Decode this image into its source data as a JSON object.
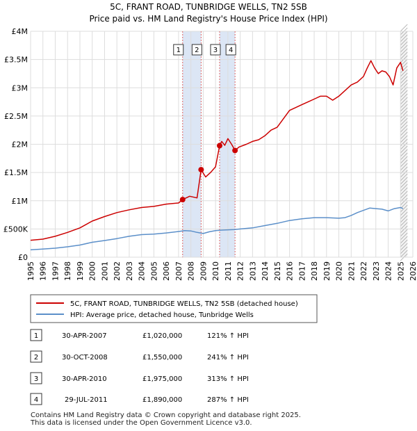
{
  "chart_data": {
    "type": "line",
    "title": "5C, FRANT ROAD, TUNBRIDGE WELLS, TN2 5SB",
    "subtitle": "Price paid vs. HM Land Registry's House Price Index (HPI)",
    "xlim": [
      1995,
      2026
    ],
    "ylim": [
      0,
      4000000
    ],
    "x_ticks": [
      "1995",
      "1996",
      "1997",
      "1998",
      "1999",
      "2000",
      "2001",
      "2002",
      "2003",
      "2004",
      "2005",
      "2006",
      "2007",
      "2008",
      "2009",
      "2010",
      "2011",
      "2012",
      "2013",
      "2014",
      "2015",
      "2016",
      "2017",
      "2018",
      "2019",
      "2020",
      "2021",
      "2022",
      "2023",
      "2024",
      "2025",
      "2026"
    ],
    "y_ticks": [
      {
        "label": "£0",
        "value": 0
      },
      {
        "label": "£500K",
        "value": 500000
      },
      {
        "label": "£1M",
        "value": 1000000
      },
      {
        "label": "£1.5M",
        "value": 1500000
      },
      {
        "label": "£2M",
        "value": 2000000
      },
      {
        "label": "£2.5M",
        "value": 2500000
      },
      {
        "label": "£3M",
        "value": 3000000
      },
      {
        "label": "£3.5M",
        "value": 3500000
      },
      {
        "label": "£4M",
        "value": 4000000
      }
    ],
    "grid": true,
    "shaded_spans": [
      [
        2007.33,
        2008.83
      ],
      [
        2010.33,
        2011.58
      ]
    ],
    "forecast_start": 2025.0,
    "series": [
      {
        "name": "5C, FRANT ROAD, TUNBRIDGE WELLS, TN2 5SB (detached house)",
        "color": "#cc0000",
        "x": [
          1995.0,
          1996.0,
          1997.0,
          1998.0,
          1999.0,
          2000.0,
          2001.0,
          2002.0,
          2003.0,
          2004.0,
          2005.0,
          2006.0,
          2007.0,
          2007.33,
          2007.9,
          2008.5,
          2008.83,
          2009.2,
          2009.6,
          2010.0,
          2010.33,
          2010.5,
          2010.75,
          2011.0,
          2011.3,
          2011.58,
          2011.9,
          2012.5,
          2013.0,
          2013.5,
          2014.0,
          2014.5,
          2015.0,
          2015.5,
          2016.0,
          2016.5,
          2017.0,
          2017.5,
          2018.0,
          2018.5,
          2019.0,
          2019.5,
          2020.0,
          2020.5,
          2021.0,
          2021.5,
          2022.0,
          2022.3,
          2022.6,
          2022.9,
          2023.2,
          2023.5,
          2023.8,
          2024.1,
          2024.4,
          2024.7,
          2025.0,
          2025.2
        ],
        "y": [
          300000,
          320000,
          370000,
          440000,
          520000,
          640000,
          720000,
          790000,
          840000,
          880000,
          900000,
          940000,
          960000,
          1020000,
          1080000,
          1050000,
          1550000,
          1420000,
          1500000,
          1600000,
          1975000,
          2050000,
          1980000,
          2100000,
          2000000,
          1890000,
          1950000,
          2000000,
          2050000,
          2080000,
          2150000,
          2250000,
          2300000,
          2450000,
          2600000,
          2650000,
          2700000,
          2750000,
          2800000,
          2850000,
          2850000,
          2780000,
          2850000,
          2950000,
          3050000,
          3100000,
          3200000,
          3350000,
          3480000,
          3350000,
          3250000,
          3300000,
          3280000,
          3200000,
          3050000,
          3350000,
          3450000,
          3300000
        ]
      },
      {
        "name": "HPI: Average price, detached house, Tunbridge Wells",
        "color": "#5b8fc9",
        "x": [
          1995.0,
          1996.0,
          1997.0,
          1998.0,
          1999.0,
          2000.0,
          2001.0,
          2002.0,
          2003.0,
          2004.0,
          2005.0,
          2006.0,
          2007.0,
          2007.5,
          2008.0,
          2008.5,
          2009.0,
          2009.5,
          2010.0,
          2010.5,
          2011.0,
          2011.5,
          2012.0,
          2013.0,
          2014.0,
          2015.0,
          2016.0,
          2017.0,
          2018.0,
          2019.0,
          2020.0,
          2020.5,
          2021.0,
          2021.5,
          2022.0,
          2022.5,
          2023.0,
          2023.5,
          2024.0,
          2024.5,
          2025.0,
          2025.2
        ],
        "y": [
          130000,
          145000,
          160000,
          185000,
          215000,
          265000,
          295000,
          330000,
          370000,
          400000,
          410000,
          430000,
          455000,
          470000,
          465000,
          440000,
          420000,
          450000,
          470000,
          480000,
          485000,
          490000,
          500000,
          520000,
          560000,
          600000,
          650000,
          680000,
          700000,
          700000,
          690000,
          700000,
          740000,
          790000,
          830000,
          870000,
          860000,
          850000,
          820000,
          860000,
          880000,
          860000
        ]
      }
    ],
    "markers": [
      {
        "label": "1",
        "x": 2007.33,
        "y": 1020000
      },
      {
        "label": "2",
        "x": 2008.83,
        "y": 1550000
      },
      {
        "label": "3",
        "x": 2010.33,
        "y": 1975000
      },
      {
        "label": "4",
        "x": 2011.58,
        "y": 1890000
      }
    ]
  },
  "legend": {
    "property_label": "5C, FRANT ROAD, TUNBRIDGE WELLS, TN2 5SB (detached house)",
    "hpi_label": "HPI: Average price, detached house, Tunbridge Wells"
  },
  "transactions": [
    {
      "num": "1",
      "date": "30-APR-2007",
      "price": "£1,020,000",
      "hpi": "121% ↑ HPI"
    },
    {
      "num": "2",
      "date": "30-OCT-2008",
      "price": "£1,550,000",
      "hpi": "241% ↑ HPI"
    },
    {
      "num": "3",
      "date": "30-APR-2010",
      "price": "£1,975,000",
      "hpi": "313% ↑ HPI"
    },
    {
      "num": "4",
      "date": "29-JUL-2011",
      "price": "£1,890,000",
      "hpi": "287% ↑ HPI"
    }
  ],
  "footer": {
    "line1": "Contains HM Land Registry data © Crown copyright and database right 2025.",
    "line2": "This data is licensed under the Open Government Licence v3.0."
  },
  "colors": {
    "grid": "#dddddd",
    "shade": "#dce6f5",
    "marker_line": "#dd6666",
    "property": "#cc0000",
    "hpi": "#5b8fc9"
  }
}
